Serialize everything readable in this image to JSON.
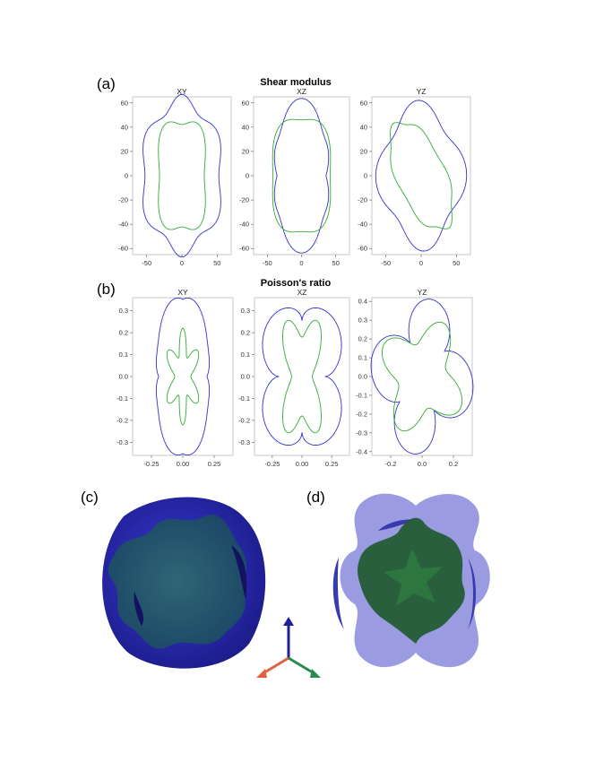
{
  "panel_labels": {
    "a": "(a)",
    "b": "(b)",
    "c": "(c)",
    "d": "(d)"
  },
  "sections": {
    "shear": "Shear modulus",
    "poisson": "Poisson's ratio"
  },
  "colors": {
    "outer": "#3333cc",
    "inner": "#33aa33",
    "axis_up": "#1f1f99",
    "axis_left": "#e06040",
    "axis_right": "#2a8a50"
  },
  "chart_data": [
    {
      "type": "scatter",
      "title": "XY",
      "section": "Shear modulus",
      "xticks": [
        "-50",
        "0",
        "50"
      ],
      "yticks": [
        "60",
        "40",
        "20",
        "0",
        "-20",
        "-40",
        "-60"
      ],
      "xlim": [
        -70,
        70
      ],
      "ylim": [
        -65,
        65
      ],
      "series": [
        {
          "color": "#3333cc",
          "kind": "outer",
          "rx": 57,
          "ry": 62,
          "lobe": 0.1
        },
        {
          "color": "#33aa33",
          "kind": "inner",
          "rx": 38,
          "ry": 48,
          "lobe": 0.12
        }
      ]
    },
    {
      "type": "scatter",
      "title": "XZ",
      "section": "Shear modulus",
      "xticks": [
        "-50",
        "0",
        "50"
      ],
      "yticks": [
        "60",
        "40",
        "20",
        "0",
        "-20",
        "-40",
        "-60"
      ],
      "xlim": [
        -70,
        70
      ],
      "ylim": [
        -65,
        65
      ],
      "series": [
        {
          "color": "#3333cc",
          "kind": "petal",
          "rx": 58,
          "ry": 58
        },
        {
          "color": "#33aa33",
          "kind": "inner",
          "rx": 48,
          "ry": 50,
          "lobe": 0.08
        }
      ]
    },
    {
      "type": "scatter",
      "title": "YZ",
      "section": "Shear modulus",
      "xticks": [
        "-50",
        "0",
        "50"
      ],
      "yticks": [
        "60",
        "40",
        "20",
        "0",
        "-20",
        "-40",
        "-60"
      ],
      "xlim": [
        -70,
        70
      ],
      "ylim": [
        -65,
        65
      ],
      "series": [
        {
          "color": "#3333cc",
          "kind": "tilted",
          "rx": 58,
          "ry": 58
        },
        {
          "color": "#33aa33",
          "kind": "tilted-inner",
          "rx": 55,
          "ry": 52
        }
      ]
    },
    {
      "type": "scatter",
      "title": "XY",
      "section": "Poisson's ratio",
      "xticks": [
        "-0.25",
        "0.00",
        "0.25"
      ],
      "yticks": [
        "0.3",
        "0.2",
        "0.1",
        "0.0",
        "-0.1",
        "-0.2",
        "-0.3"
      ],
      "xlim": [
        -0.4,
        0.4
      ],
      "ylim": [
        -0.36,
        0.36
      ],
      "series": [
        {
          "color": "#3333cc",
          "kind": "poisson-outer",
          "rx": 0.32,
          "ry": 0.34
        },
        {
          "color": "#33aa33",
          "kind": "star",
          "rx": 0.18,
          "ry": 0.22
        }
      ]
    },
    {
      "type": "scatter",
      "title": "XZ",
      "section": "Poisson's ratio",
      "xticks": [
        "-0.25",
        "0.00",
        "0.25"
      ],
      "yticks": [
        "0.3",
        "0.2",
        "0.1",
        "0.0",
        "-0.1",
        "-0.2",
        "-0.3"
      ],
      "xlim": [
        -0.4,
        0.4
      ],
      "ylim": [
        -0.36,
        0.36
      ],
      "series": [
        {
          "color": "#3333cc",
          "kind": "double-petal",
          "rx": 0.36,
          "ry": 0.34
        },
        {
          "color": "#33aa33",
          "kind": "butterfly",
          "rx": 0.2,
          "ry": 0.24
        }
      ]
    },
    {
      "type": "scatter",
      "title": "YZ",
      "section": "Poisson's ratio",
      "xticks": [
        "-0.2",
        "0.0",
        "0.2"
      ],
      "yticks": [
        "0.4",
        "0.3",
        "0.2",
        "0.1",
        "0.0",
        "-0.1",
        "-0.2",
        "-0.3",
        "-0.4"
      ],
      "xlim": [
        -0.32,
        0.32
      ],
      "ylim": [
        -0.42,
        0.42
      ],
      "series": [
        {
          "color": "#3333cc",
          "kind": "poisson-tilted",
          "rx": 0.3,
          "ry": 0.38
        },
        {
          "color": "#33aa33",
          "kind": "poisson-tilted-inner",
          "rx": 0.2,
          "ry": 0.25
        }
      ]
    }
  ]
}
